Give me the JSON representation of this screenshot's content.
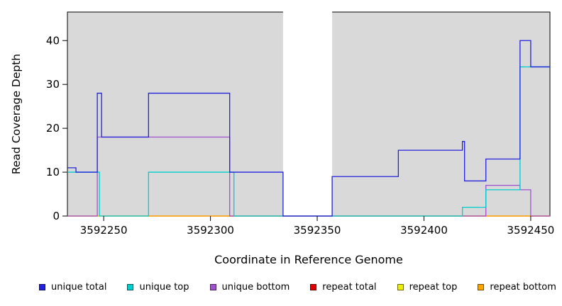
{
  "chart_data": {
    "type": "line",
    "subtype": "step-after",
    "title": "",
    "xlabel": "Coordinate in Reference Genome",
    "ylabel": "Read Coverage Depth",
    "xlim": [
      3592233,
      3592459
    ],
    "ylim": [
      0,
      46.5
    ],
    "x_ticks": [
      3592250,
      3592300,
      3592350,
      3592400,
      3592450
    ],
    "y_ticks": [
      0,
      10,
      20,
      30,
      40
    ],
    "background": {
      "plot_bg": "#d9d9d9",
      "gap_region": [
        3592334,
        3592357
      ],
      "gap_color": "#ffffff"
    },
    "series": [
      {
        "name": "repeat total",
        "color": "#dd0000",
        "points": [
          [
            3592233,
            0
          ]
        ],
        "x_end": 3592459
      },
      {
        "name": "repeat top",
        "color": "#eeee00",
        "points": [
          [
            3592233,
            0
          ]
        ],
        "x_end": 3592459
      },
      {
        "name": "repeat bottom",
        "color": "#ffa500",
        "points": [
          [
            3592271,
            0
          ]
        ],
        "x_end": 3592311
      },
      {
        "name": "repeat bottom",
        "color": "#ffa500",
        "points": [
          [
            3592418,
            0
          ]
        ],
        "x_end": 3592459
      },
      {
        "name": "unique bottom",
        "color": "#a050d0",
        "points": [
          [
            3592233,
            0
          ],
          [
            3592247,
            18
          ],
          [
            3592309,
            0
          ],
          [
            3592429,
            7
          ],
          [
            3592445,
            6
          ],
          [
            3592450,
            0
          ]
        ],
        "x_end": 3592459
      },
      {
        "name": "unique top",
        "color": "#00cdcd",
        "points": [
          [
            3592233,
            10
          ],
          [
            3592248,
            0
          ],
          [
            3592271,
            10
          ],
          [
            3592311,
            0
          ],
          [
            3592418,
            2
          ],
          [
            3592429,
            6
          ],
          [
            3592445,
            34
          ]
        ],
        "x_end": 3592459
      },
      {
        "name": "unique total",
        "color": "#2222dd",
        "points": [
          [
            3592233,
            11
          ],
          [
            3592237,
            10
          ],
          [
            3592247,
            28
          ],
          [
            3592249,
            18
          ],
          [
            3592271,
            28
          ],
          [
            3592309,
            10
          ],
          [
            3592334,
            0
          ],
          [
            3592357,
            9
          ],
          [
            3592388,
            15
          ],
          [
            3592418,
            17
          ],
          [
            3592419,
            8
          ],
          [
            3592429,
            13
          ],
          [
            3592445,
            40
          ],
          [
            3592450,
            34
          ]
        ],
        "x_end": 3592459
      }
    ],
    "legend": {
      "position": "bottom",
      "items": [
        {
          "label": "unique total",
          "color": "#2222dd"
        },
        {
          "label": "unique top",
          "color": "#00cdcd"
        },
        {
          "label": "unique bottom",
          "color": "#a050d0"
        },
        {
          "label": "repeat total",
          "color": "#dd0000"
        },
        {
          "label": "repeat top",
          "color": "#eeee00"
        },
        {
          "label": "repeat bottom",
          "color": "#ffa500"
        }
      ]
    }
  }
}
